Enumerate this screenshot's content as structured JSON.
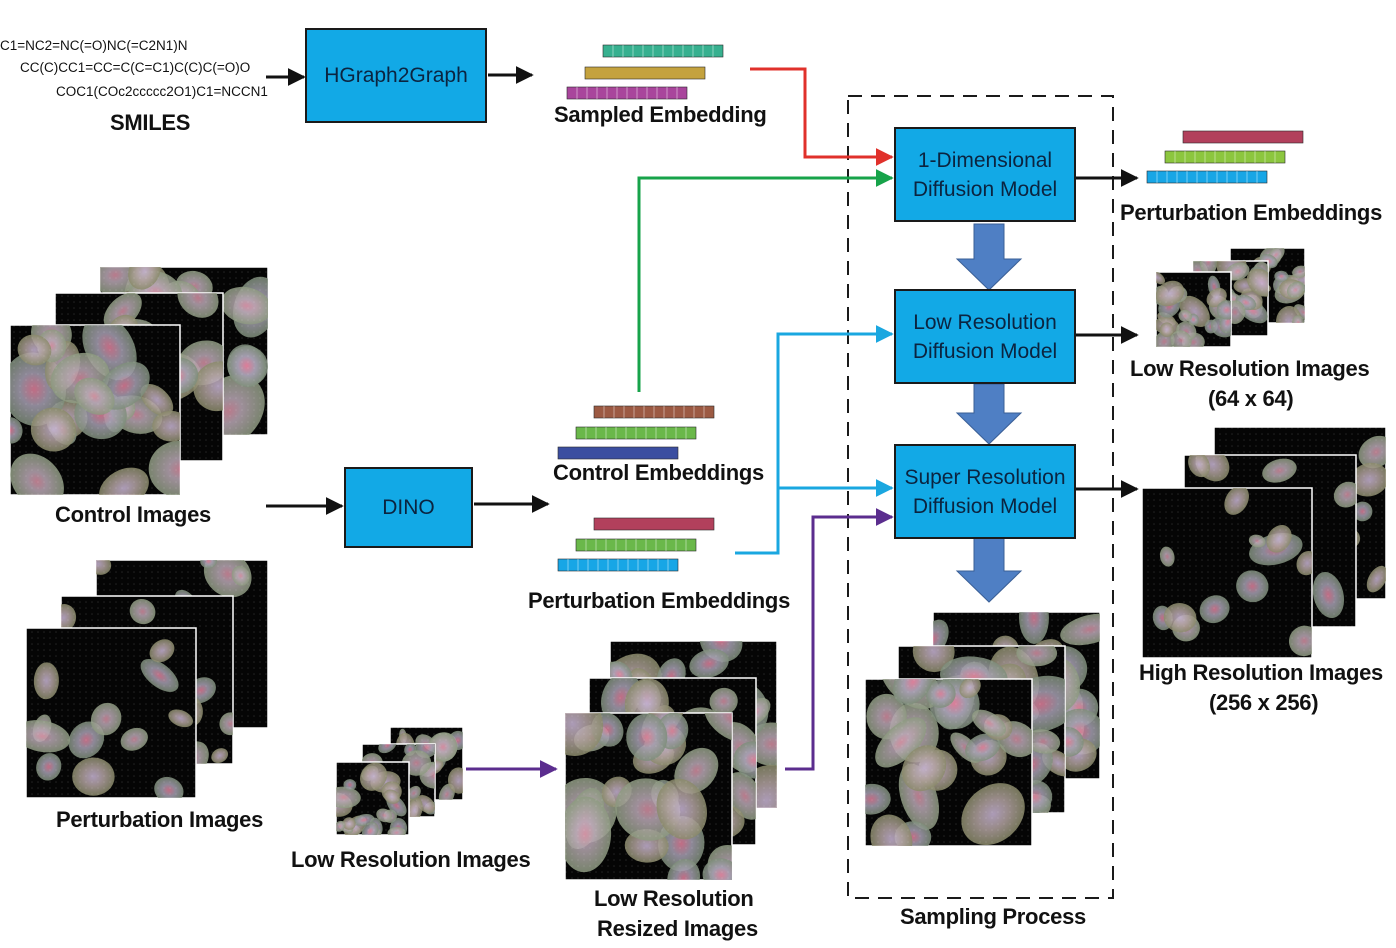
{
  "smiles": {
    "lines": [
      "C1=NC2=NC(=O)NC(=C2N1)N",
      "CC(C)CC1=CC=C(C=C1)C(C)C(=O)O",
      "COC1(COc2ccccc2O1)C1=NCCN1"
    ],
    "label": "SMILES"
  },
  "blocks": {
    "hgraph": "HGraph2Graph",
    "dino": "DINO",
    "diffusion_1d": "1-Dimensional\nDiffusion Model",
    "low_res": "Low Resolution\nDiffusion Model",
    "super_res": "Super Resolution\nDiffusion Model"
  },
  "labels": {
    "sampled_embedding": "Sampled Embedding",
    "control_embeddings": "Control Embeddings",
    "perturbation_embeddings_mid": "Perturbation Embeddings",
    "perturbation_embeddings_out": "Perturbation Embeddings",
    "control_images": "Control Images",
    "perturbation_images": "Perturbation Images",
    "low_res_images_input": "Low Resolution Images",
    "low_res_resized_line1": "Low Resolution",
    "low_res_resized_line2": "Resized Images",
    "low_res_out_line1": "Low Resolution Images",
    "low_res_out_line2": "(64 x 64)",
    "high_res_out_line1": "High Resolution Images",
    "high_res_out_line2": "(256 x 256)",
    "sampling_process": "Sampling Process"
  },
  "colors": {
    "block_fill": "#12a9e6",
    "flow_red": "#e0312b",
    "flow_green": "#17a34a",
    "flow_blue": "#1aa7e0",
    "flow_purple": "#5b2d8e",
    "down_arrow": "#4f7fc4",
    "emb_teal": "#37b08f",
    "emb_gold": "#c4a23e",
    "emb_magenta": "#a9459c",
    "emb_brown": "#9c5a43",
    "emb_green": "#6ab84a",
    "emb_navy": "#3b4ea0",
    "emb_red": "#b2405c",
    "emb_lime": "#8cc63f",
    "emb_cyan": "#17a6e6"
  }
}
